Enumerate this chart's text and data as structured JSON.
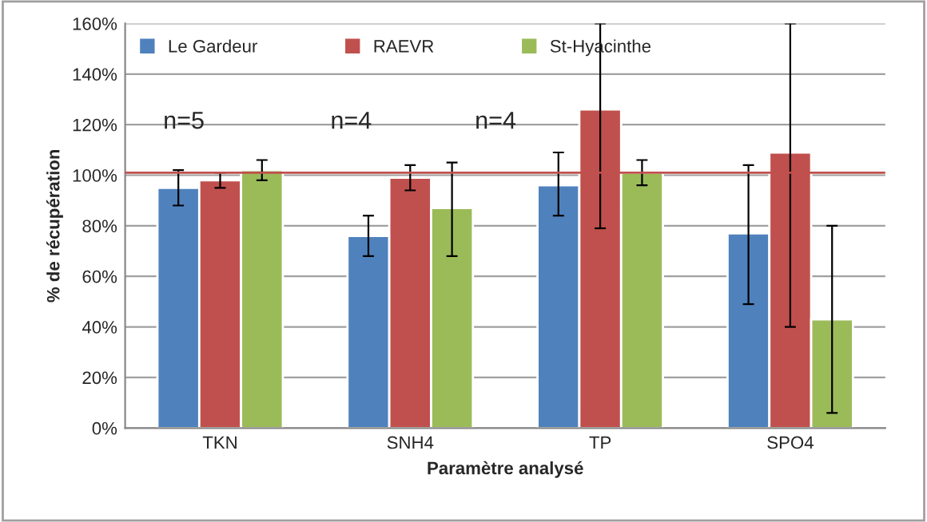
{
  "chart_data": {
    "type": "bar",
    "xlabel": "Paramètre analysé",
    "ylabel": "% de récupération",
    "categories": [
      "TKN",
      "SNH4",
      "TP",
      "SPO4"
    ],
    "series": [
      {
        "name": "Le Gardeur",
        "color": "#4f81bd",
        "values": [
          95,
          76,
          96,
          77
        ],
        "errors": [
          [
            88,
            102
          ],
          [
            68,
            84
          ],
          [
            84,
            109
          ],
          [
            49,
            104
          ]
        ]
      },
      {
        "name": "RAEVR",
        "color": "#c0504d",
        "values": [
          98,
          99,
          126,
          109
        ],
        "errors": [
          [
            95,
            101
          ],
          [
            94,
            104
          ],
          [
            79,
            160
          ],
          [
            40,
            160
          ]
        ]
      },
      {
        "name": "St-Hyacinthe",
        "color": "#9bbb59",
        "values": [
          102,
          87,
          101,
          43
        ],
        "errors": [
          [
            98,
            106
          ],
          [
            68,
            105
          ],
          [
            96,
            106
          ],
          [
            6,
            80
          ]
        ]
      }
    ],
    "ylim": [
      0,
      160
    ],
    "yticks": [
      {
        "value": 0,
        "label": "0%"
      },
      {
        "value": 20,
        "label": "20%"
      },
      {
        "value": 40,
        "label": "40%"
      },
      {
        "value": 60,
        "label": "60%"
      },
      {
        "value": 80,
        "label": "80%"
      },
      {
        "value": 100,
        "label": "100%"
      },
      {
        "value": 120,
        "label": "120%"
      },
      {
        "value": 140,
        "label": "140%"
      },
      {
        "value": 160,
        "label": "160%"
      }
    ],
    "ref_lines": [
      {
        "axis": "y",
        "value": 101,
        "color": "#c0504d"
      }
    ],
    "annotations": [
      "n=5",
      "n=4",
      "n=4"
    ],
    "grid": "y",
    "legend": "top left"
  }
}
